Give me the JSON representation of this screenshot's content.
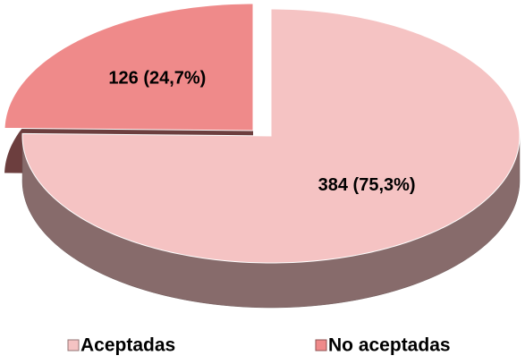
{
  "chart_data": {
    "type": "pie",
    "categories": [
      "Aceptadas",
      "No aceptadas"
    ],
    "values": [
      384,
      126
    ],
    "value_labels": [
      "384 (75,3%)",
      "126 (24,7%)"
    ],
    "colors": [
      "#f5c3c3",
      "#ef8a8a"
    ],
    "legend": "bottom"
  }
}
